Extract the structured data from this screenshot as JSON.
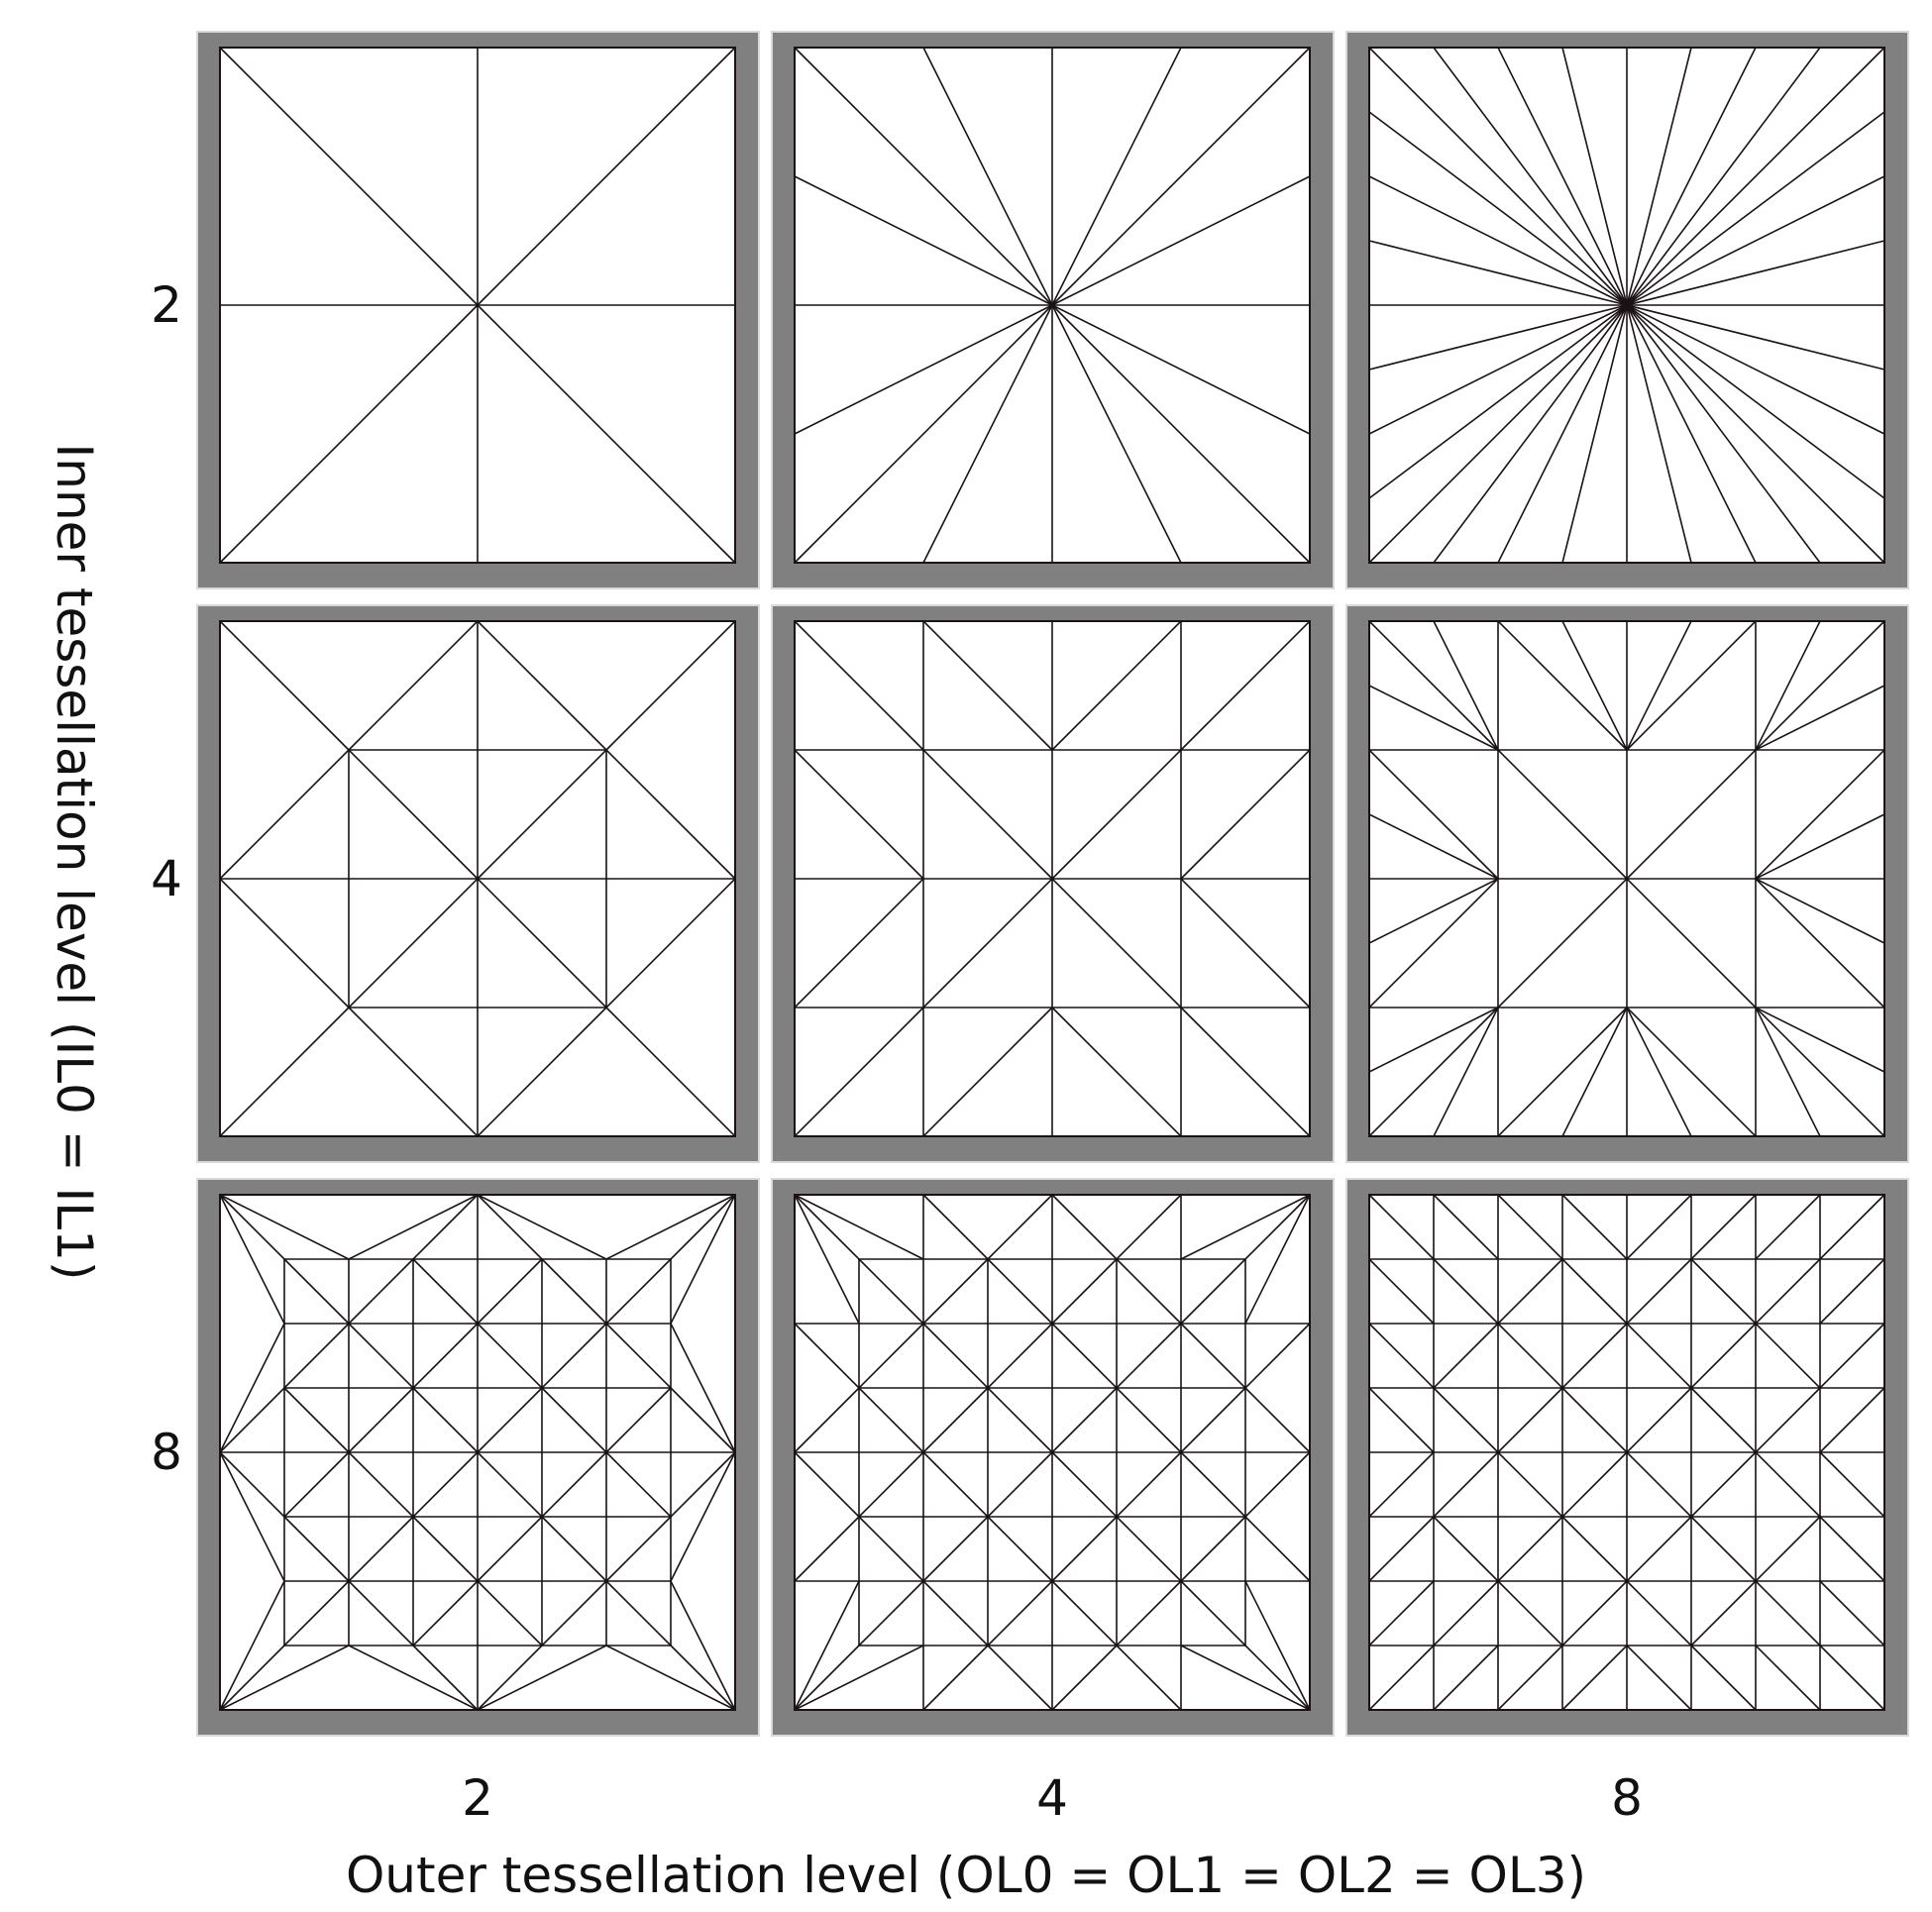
{
  "title": "",
  "axes": {
    "x_label": "Outer tessellation level (OL0 = OL1 = OL2 = OL3)",
    "y_label": "Inner tessellation level (IL0 = IL1)"
  },
  "columns": [
    {
      "label": "2",
      "outer_level": 2
    },
    {
      "label": "4",
      "outer_level": 4
    },
    {
      "label": "8",
      "outer_level": 8
    }
  ],
  "rows": [
    {
      "label": "2",
      "inner_level": 2
    },
    {
      "label": "4",
      "inner_level": 4
    },
    {
      "label": "8",
      "inner_level": 8
    }
  ],
  "colors": {
    "panel_frame": "#808080",
    "panel_fill": "#ffffff",
    "mesh_line": "#1a1214",
    "text": "#111111"
  }
}
